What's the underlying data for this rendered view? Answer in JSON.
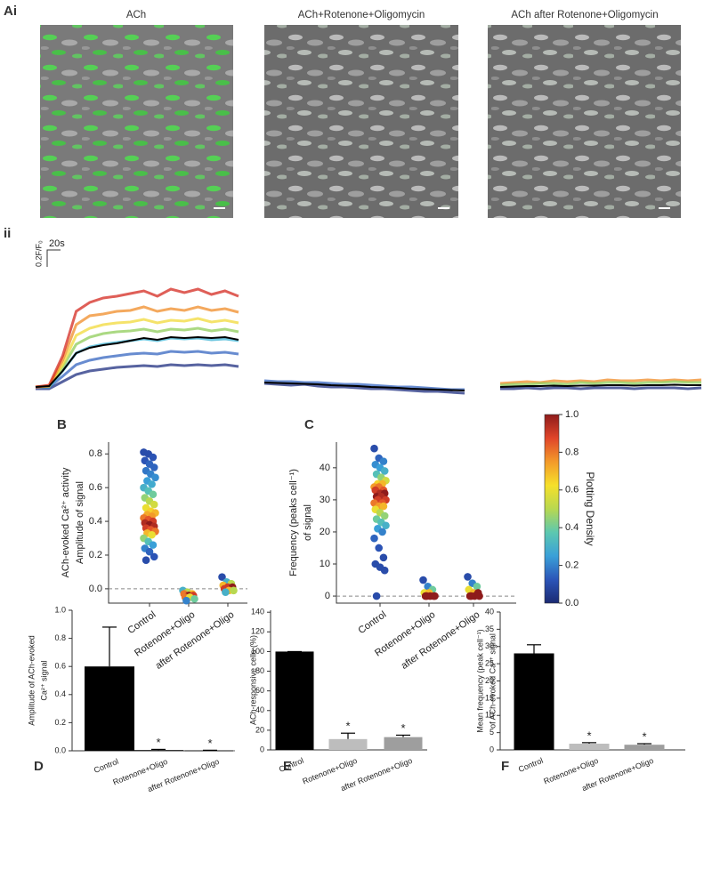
{
  "panel_a": {
    "label": "Ai",
    "images": [
      {
        "title": "ACh"
      },
      {
        "title": "ACh+Rotenone+Oligomycin"
      },
      {
        "title": "ACh after Rotenone+Oligomycin"
      }
    ]
  },
  "chart_data": [
    {
      "type": "traces",
      "panel": "ii",
      "scale_bar": {
        "x": "20s",
        "y": "0.2F/F₀"
      },
      "panels": [
        {
          "series": [
            {
              "color": "#1f2f80",
              "values": [
                -0.02,
                -0.02,
                0.06,
                0.14,
                0.18,
                0.2,
                0.22,
                0.23,
                0.24,
                0.23,
                0.25,
                0.24,
                0.25,
                0.24,
                0.25,
                0.23
              ]
            },
            {
              "color": "#3566c0",
              "values": [
                0,
                0,
                0.12,
                0.25,
                0.3,
                0.33,
                0.35,
                0.37,
                0.38,
                0.37,
                0.4,
                0.39,
                0.4,
                0.38,
                0.39,
                0.37
              ]
            },
            {
              "color": "#3fb4d6",
              "values": [
                0,
                0,
                0.18,
                0.38,
                0.45,
                0.48,
                0.5,
                0.52,
                0.54,
                0.52,
                0.55,
                0.54,
                0.55,
                0.53,
                0.54,
                0.52
              ]
            },
            {
              "color": "#8fcc5a",
              "values": [
                0,
                0.01,
                0.22,
                0.48,
                0.56,
                0.6,
                0.62,
                0.63,
                0.65,
                0.62,
                0.65,
                0.64,
                0.66,
                0.63,
                0.65,
                0.62
              ]
            },
            {
              "color": "#f2d93a",
              "values": [
                0,
                0.01,
                0.25,
                0.58,
                0.66,
                0.7,
                0.72,
                0.73,
                0.76,
                0.72,
                0.75,
                0.74,
                0.77,
                0.73,
                0.75,
                0.72
              ]
            },
            {
              "color": "#f08c28",
              "values": [
                0,
                0.01,
                0.3,
                0.7,
                0.8,
                0.82,
                0.85,
                0.86,
                0.9,
                0.85,
                0.88,
                0.86,
                0.9,
                0.86,
                0.88,
                0.84
              ]
            },
            {
              "color": "#d42a20",
              "values": [
                0,
                0.02,
                0.35,
                0.85,
                0.95,
                1.0,
                1.02,
                1.05,
                1.08,
                1.02,
                1.1,
                1.06,
                1.1,
                1.04,
                1.08,
                1.02
              ]
            },
            {
              "color": "#000000",
              "values": [
                0,
                0.01,
                0.18,
                0.38,
                0.44,
                0.47,
                0.49,
                0.52,
                0.55,
                0.53,
                0.56,
                0.55,
                0.56,
                0.55,
                0.56,
                0.53
              ]
            }
          ]
        },
        {
          "series": [
            {
              "color": "#1f2f80",
              "values": [
                0.04,
                0.03,
                0.02,
                0.03,
                0.01,
                0.0,
                0.0,
                -0.01,
                -0.02,
                -0.02,
                -0.03,
                -0.04,
                -0.05,
                -0.05,
                -0.06,
                -0.07
              ]
            },
            {
              "color": "#3566c0",
              "values": [
                0.07,
                0.06,
                0.06,
                0.05,
                0.05,
                0.04,
                0.03,
                0.03,
                0.02,
                0.01,
                0.0,
                0.0,
                -0.01,
                -0.02,
                -0.03,
                -0.03
              ]
            },
            {
              "color": "#000000",
              "values": [
                0.05,
                0.045,
                0.04,
                0.035,
                0.03,
                0.02,
                0.015,
                0.01,
                0.0,
                -0.005,
                -0.01,
                -0.02,
                -0.025,
                -0.03,
                -0.035,
                -0.04
              ]
            }
          ]
        },
        {
          "series": [
            {
              "color": "#f08c28",
              "values": [
                0.04,
                0.05,
                0.06,
                0.05,
                0.07,
                0.06,
                0.07,
                0.06,
                0.08,
                0.07,
                0.07,
                0.08,
                0.07,
                0.08,
                0.07,
                0.08
              ]
            },
            {
              "color": "#8fcc5a",
              "values": [
                0.02,
                0.03,
                0.03,
                0.04,
                0.04,
                0.03,
                0.05,
                0.04,
                0.05,
                0.05,
                0.04,
                0.05,
                0.05,
                0.06,
                0.05,
                0.05
              ]
            },
            {
              "color": "#1f2f80",
              "values": [
                -0.02,
                -0.02,
                -0.01,
                -0.02,
                -0.01,
                -0.01,
                -0.02,
                -0.01,
                -0.01,
                -0.01,
                -0.02,
                -0.01,
                -0.01,
                -0.01,
                -0.02,
                -0.01
              ]
            },
            {
              "color": "#000000",
              "values": [
                0,
                0.005,
                0.01,
                0.01,
                0.015,
                0.01,
                0.015,
                0.015,
                0.02,
                0.02,
                0.015,
                0.02,
                0.02,
                0.025,
                0.02,
                0.02
              ]
            }
          ]
        }
      ]
    },
    {
      "type": "strip",
      "panel": "B",
      "y_label": [
        "ACh-evoked Ca²⁺ activity",
        "Amplitude of signal"
      ],
      "categories": [
        "Control",
        "Rotenone+Oligo",
        "after Rotenone+Oligo"
      ],
      "ylim": [
        -0.085,
        0.87
      ],
      "yticks": [
        {
          "value": 0,
          "label": "0.0"
        },
        {
          "value": 0.2,
          "label": "0.2"
        },
        {
          "value": 0.4,
          "label": "0.4"
        },
        {
          "value": 0.6,
          "label": "0.6"
        },
        {
          "value": 0.8,
          "label": "0.8"
        }
      ],
      "zero_line": true,
      "series": [
        {
          "values": [
            0.81,
            0.8,
            0.78,
            0.76,
            0.74,
            0.72,
            0.7,
            0.68,
            0.66,
            0.64,
            0.62,
            0.6,
            0.58,
            0.56,
            0.54,
            0.52,
            0.5,
            0.48,
            0.46,
            0.45,
            0.44,
            0.43,
            0.42,
            0.41,
            0.4,
            0.39,
            0.38,
            0.37,
            0.36,
            0.35,
            0.34,
            0.33,
            0.32,
            0.3,
            0.28,
            0.26,
            0.24,
            0.22,
            0.19,
            0.17
          ],
          "density": [
            0.1,
            0.1,
            0.12,
            0.12,
            0.15,
            0.15,
            0.18,
            0.2,
            0.22,
            0.25,
            0.28,
            0.3,
            0.35,
            0.4,
            0.45,
            0.5,
            0.55,
            0.6,
            0.65,
            0.7,
            0.72,
            0.75,
            0.8,
            0.85,
            0.9,
            0.95,
            1,
            0.95,
            0.9,
            0.85,
            0.8,
            0.7,
            0.6,
            0.45,
            0.35,
            0.25,
            0.2,
            0.15,
            0.12,
            0.1
          ]
        },
        {
          "values": [
            -0.01,
            -0.02,
            -0.03,
            -0.03,
            -0.04,
            -0.04,
            -0.05,
            -0.05,
            -0.06,
            -0.07
          ],
          "density": [
            0.3,
            0.5,
            0.7,
            0.8,
            1,
            0.9,
            0.8,
            0.6,
            0.4,
            0.2
          ]
        },
        {
          "values": [
            0.07,
            0.04,
            0.03,
            0.02,
            0.01,
            0.01,
            0,
            -0.01,
            -0.01,
            -0.02
          ],
          "density": [
            0.1,
            0.3,
            0.5,
            0.7,
            0.9,
            1,
            0.9,
            0.7,
            0.5,
            0.3
          ]
        }
      ]
    },
    {
      "type": "strip",
      "panel": "C",
      "y_label": [
        "Frequency (peaks cell⁻¹)",
        "of signal"
      ],
      "categories": [
        "Control",
        "Rotenone+Oligo",
        "after Rotenone+Oligo"
      ],
      "ylim": [
        -2.2,
        48
      ],
      "yticks": [
        0,
        10,
        20,
        30,
        40
      ],
      "zero_line": true,
      "series": [
        {
          "values": [
            46,
            43,
            42,
            41,
            40,
            39,
            38,
            37,
            36,
            35,
            35,
            34,
            34,
            33,
            33,
            32,
            32,
            31,
            31,
            30,
            30,
            29,
            29,
            28,
            28,
            27,
            26,
            25,
            24,
            23,
            22,
            21,
            20,
            18,
            15,
            12,
            10,
            9,
            8,
            0
          ],
          "density": [
            0.1,
            0.15,
            0.2,
            0.22,
            0.25,
            0.3,
            0.35,
            0.45,
            0.55,
            0.65,
            0.7,
            0.75,
            0.8,
            0.85,
            0.9,
            0.95,
            1,
            1,
            0.95,
            0.9,
            0.9,
            0.85,
            0.8,
            0.75,
            0.7,
            0.6,
            0.5,
            0.45,
            0.4,
            0.35,
            0.3,
            0.25,
            0.2,
            0.15,
            0.12,
            0.1,
            0.1,
            0.1,
            0.1,
            0.1
          ]
        },
        {
          "values": [
            5,
            3,
            2,
            1,
            1,
            0,
            0,
            0,
            0,
            0
          ],
          "density": [
            0.1,
            0.2,
            0.4,
            0.6,
            0.7,
            1,
            1,
            1,
            1,
            1
          ]
        },
        {
          "values": [
            6,
            4,
            3,
            2,
            1,
            1,
            0,
            0,
            0,
            0
          ],
          "density": [
            0.1,
            0.2,
            0.4,
            0.6,
            0.7,
            1,
            1,
            1,
            1,
            1
          ]
        }
      ]
    },
    {
      "type": "colorbar",
      "label": "Plotting Density",
      "ylim": [
        0,
        1
      ],
      "yticks": [
        {
          "value": 0,
          "label": "0.0"
        },
        {
          "value": 0.2,
          "label": "0.2"
        },
        {
          "value": 0.4,
          "label": "0.4"
        },
        {
          "value": 0.6,
          "label": "0.6"
        },
        {
          "value": 0.8,
          "label": "0.8"
        },
        {
          "value": 1,
          "label": "1.0"
        }
      ],
      "colors": [
        "#1b2a72",
        "#2c55b8",
        "#3aa0d8",
        "#5cc8b0",
        "#b8d850",
        "#f6e02a",
        "#f39a2a",
        "#e0452a",
        "#8e1b1b"
      ]
    },
    {
      "type": "bar",
      "panel": "D",
      "y_label": [
        "Amplitude of ACh-evoked",
        "Ca²⁺ signal"
      ],
      "categories": [
        "Control",
        "Rotenone+Oligo",
        "after Rotenone+Oligo"
      ],
      "values": [
        0.6,
        0.005,
        0.002
      ],
      "errors": [
        0.28,
        0.005,
        0.002
      ],
      "annotations": [
        null,
        "*",
        "*"
      ],
      "colors": [
        "#000000",
        "#000000",
        "#000000"
      ],
      "ylim": [
        0,
        1
      ],
      "yticks": [
        {
          "value": 0,
          "label": "0.0"
        },
        {
          "value": 0.2,
          "label": "0.2"
        },
        {
          "value": 0.4,
          "label": "0.4"
        },
        {
          "value": 0.6,
          "label": "0.6"
        },
        {
          "value": 0.8,
          "label": "0.8"
        },
        {
          "value": 1,
          "label": "1.0"
        }
      ]
    },
    {
      "type": "bar",
      "panel": "E",
      "y_label": [
        "ACh-responsive cells (%)"
      ],
      "categories": [
        "Control",
        "Rotenone+Oligo",
        "after Rotenone+Oligo"
      ],
      "values": [
        100,
        11,
        13
      ],
      "errors": [
        0,
        6,
        2
      ],
      "annotations": [
        null,
        "*",
        "*"
      ],
      "colors": [
        "#000000",
        "#bdbdbd",
        "#9e9e9e"
      ],
      "ylim": [
        0,
        142
      ],
      "yticks": [
        0,
        20,
        40,
        60,
        80,
        100,
        120,
        140
      ]
    },
    {
      "type": "bar",
      "panel": "F",
      "y_label": [
        "Mean frequency (peak cell⁻¹)",
        "of ACh-evoked Ca²⁺ signal"
      ],
      "categories": [
        "Control",
        "Rotenone+Oligo",
        "after Rotenone+Oligo"
      ],
      "values": [
        28,
        1.8,
        1.5
      ],
      "errors": [
        2.5,
        0.3,
        0.3
      ],
      "annotations": [
        null,
        "*",
        "*"
      ],
      "colors": [
        "#000000",
        "#bdbdbd",
        "#9e9e9e"
      ],
      "ylim": [
        0,
        40
      ],
      "yticks": [
        0,
        5,
        10,
        15,
        20,
        25,
        30,
        35,
        40
      ]
    }
  ]
}
